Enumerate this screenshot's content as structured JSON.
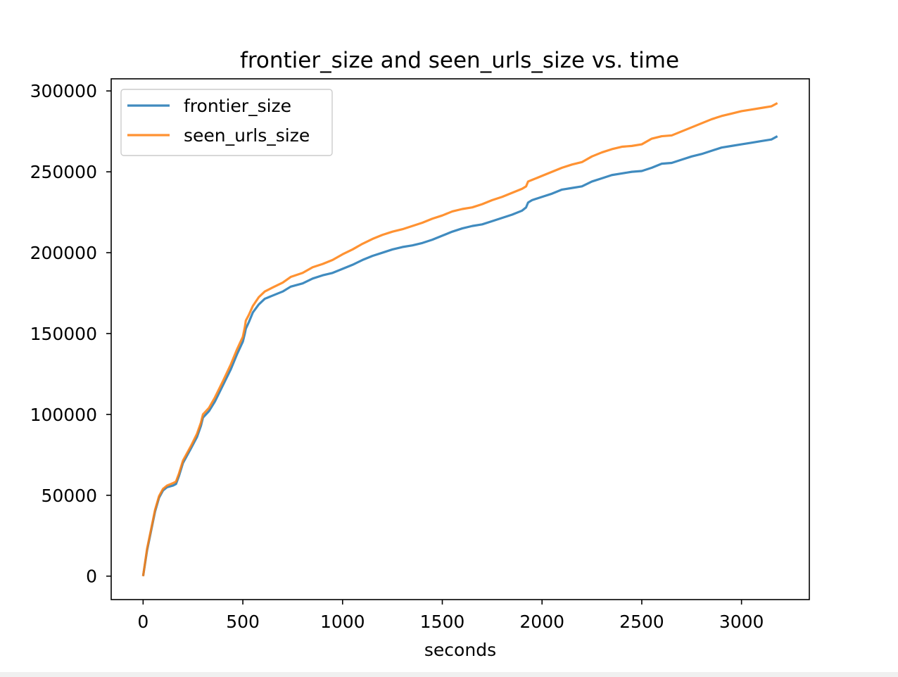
{
  "chart_data": {
    "type": "line",
    "title": "frontier_size and seen_urls_size vs. time",
    "xlabel": "seconds",
    "ylabel": "",
    "xlim": [
      -160,
      3340
    ],
    "ylim": [
      -14500,
      307500
    ],
    "xticks": [
      0,
      500,
      1000,
      1500,
      2000,
      2500,
      3000
    ],
    "yticks": [
      0,
      50000,
      100000,
      150000,
      200000,
      250000,
      300000
    ],
    "grid": false,
    "legend_position": "top-left",
    "series": [
      {
        "name": "frontier_size",
        "color": "#1f77b4",
        "points": [
          [
            0,
            0
          ],
          [
            20,
            16000
          ],
          [
            40,
            28000
          ],
          [
            60,
            40000
          ],
          [
            80,
            48500
          ],
          [
            100,
            53000
          ],
          [
            120,
            55000
          ],
          [
            150,
            56000
          ],
          [
            165,
            57000
          ],
          [
            180,
            62000
          ],
          [
            200,
            70000
          ],
          [
            240,
            79000
          ],
          [
            270,
            86000
          ],
          [
            290,
            93000
          ],
          [
            300,
            98000
          ],
          [
            330,
            102000
          ],
          [
            360,
            108000
          ],
          [
            400,
            118000
          ],
          [
            440,
            128000
          ],
          [
            470,
            137000
          ],
          [
            500,
            145000
          ],
          [
            510,
            150000
          ],
          [
            515,
            153000
          ],
          [
            530,
            157000
          ],
          [
            550,
            163000
          ],
          [
            580,
            168000
          ],
          [
            610,
            171500
          ],
          [
            650,
            173500
          ],
          [
            700,
            176000
          ],
          [
            740,
            179000
          ],
          [
            800,
            181000
          ],
          [
            850,
            184000
          ],
          [
            900,
            186000
          ],
          [
            950,
            187500
          ],
          [
            1000,
            190000
          ],
          [
            1050,
            192500
          ],
          [
            1100,
            195500
          ],
          [
            1150,
            198000
          ],
          [
            1200,
            200000
          ],
          [
            1250,
            202000
          ],
          [
            1300,
            203500
          ],
          [
            1350,
            204500
          ],
          [
            1400,
            206000
          ],
          [
            1450,
            208000
          ],
          [
            1500,
            210500
          ],
          [
            1550,
            213000
          ],
          [
            1600,
            215000
          ],
          [
            1650,
            216500
          ],
          [
            1700,
            217500
          ],
          [
            1750,
            219500
          ],
          [
            1800,
            221500
          ],
          [
            1850,
            223500
          ],
          [
            1900,
            226000
          ],
          [
            1920,
            228000
          ],
          [
            1930,
            231000
          ],
          [
            1950,
            232500
          ],
          [
            2000,
            234500
          ],
          [
            2050,
            236500
          ],
          [
            2100,
            239000
          ],
          [
            2150,
            240000
          ],
          [
            2200,
            241000
          ],
          [
            2250,
            244000
          ],
          [
            2300,
            246000
          ],
          [
            2350,
            248000
          ],
          [
            2400,
            249000
          ],
          [
            2450,
            250000
          ],
          [
            2500,
            250500
          ],
          [
            2550,
            252500
          ],
          [
            2600,
            255000
          ],
          [
            2650,
            255500
          ],
          [
            2700,
            257500
          ],
          [
            2750,
            259500
          ],
          [
            2800,
            261000
          ],
          [
            2850,
            263000
          ],
          [
            2900,
            265000
          ],
          [
            2950,
            266000
          ],
          [
            3000,
            267000
          ],
          [
            3050,
            268000
          ],
          [
            3100,
            269000
          ],
          [
            3150,
            270000
          ],
          [
            3180,
            272000
          ]
        ]
      },
      {
        "name": "seen_urls_size",
        "color": "#ff7f0e",
        "points": [
          [
            0,
            0
          ],
          [
            20,
            17000
          ],
          [
            40,
            29000
          ],
          [
            60,
            41000
          ],
          [
            80,
            49500
          ],
          [
            100,
            54000
          ],
          [
            120,
            56000
          ],
          [
            150,
            57500
          ],
          [
            165,
            58500
          ],
          [
            180,
            63500
          ],
          [
            200,
            71500
          ],
          [
            240,
            80500
          ],
          [
            270,
            88000
          ],
          [
            290,
            95000
          ],
          [
            300,
            100000
          ],
          [
            330,
            104000
          ],
          [
            360,
            110500
          ],
          [
            400,
            120500
          ],
          [
            440,
            131000
          ],
          [
            470,
            140000
          ],
          [
            500,
            148000
          ],
          [
            510,
            154000
          ],
          [
            515,
            158000
          ],
          [
            530,
            161500
          ],
          [
            550,
            167000
          ],
          [
            580,
            172500
          ],
          [
            610,
            176000
          ],
          [
            650,
            178500
          ],
          [
            700,
            181500
          ],
          [
            740,
            185000
          ],
          [
            800,
            187500
          ],
          [
            850,
            191000
          ],
          [
            900,
            193000
          ],
          [
            950,
            195500
          ],
          [
            1000,
            199000
          ],
          [
            1050,
            202000
          ],
          [
            1100,
            205500
          ],
          [
            1150,
            208500
          ],
          [
            1200,
            211000
          ],
          [
            1250,
            213000
          ],
          [
            1300,
            214500
          ],
          [
            1350,
            216500
          ],
          [
            1400,
            218500
          ],
          [
            1450,
            221000
          ],
          [
            1500,
            223000
          ],
          [
            1550,
            225500
          ],
          [
            1600,
            227000
          ],
          [
            1650,
            228000
          ],
          [
            1700,
            230000
          ],
          [
            1750,
            232500
          ],
          [
            1800,
            234500
          ],
          [
            1850,
            237000
          ],
          [
            1900,
            239500
          ],
          [
            1920,
            241000
          ],
          [
            1930,
            244000
          ],
          [
            1950,
            245000
          ],
          [
            2000,
            247500
          ],
          [
            2050,
            250000
          ],
          [
            2100,
            252500
          ],
          [
            2150,
            254500
          ],
          [
            2200,
            256000
          ],
          [
            2250,
            259500
          ],
          [
            2300,
            262000
          ],
          [
            2350,
            264000
          ],
          [
            2400,
            265500
          ],
          [
            2450,
            266000
          ],
          [
            2500,
            267000
          ],
          [
            2550,
            270500
          ],
          [
            2600,
            272000
          ],
          [
            2650,
            272500
          ],
          [
            2700,
            275000
          ],
          [
            2750,
            277500
          ],
          [
            2800,
            280000
          ],
          [
            2850,
            282500
          ],
          [
            2900,
            284500
          ],
          [
            2950,
            286000
          ],
          [
            3000,
            287500
          ],
          [
            3050,
            288500
          ],
          [
            3100,
            289500
          ],
          [
            3150,
            290500
          ],
          [
            3180,
            292500
          ]
        ]
      }
    ]
  }
}
